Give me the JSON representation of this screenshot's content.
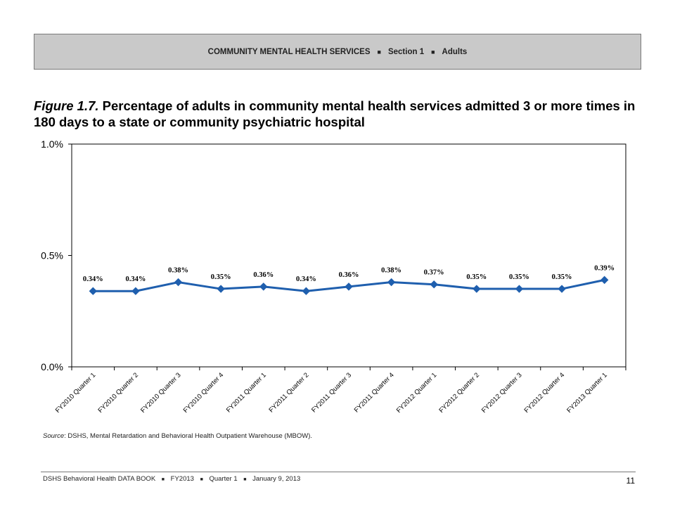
{
  "header": {
    "part1": "COMMUNITY MENTAL HEALTH SERVICES",
    "sep": "■",
    "part2": "Section 1",
    "part3": "Adults"
  },
  "title": {
    "figure": "Figure 1.7.",
    "text": "Percentage of adults in community mental health services admitted 3 or more times in 180 days to a state or community psychiatric hospital"
  },
  "chart_data": {
    "type": "line",
    "categories": [
      "FY2010 Quarter 1",
      "FY2010 Quarter 2",
      "FY2010 Quarter 3",
      "FY2010 Quarter 4",
      "FY2011 Quarter 1",
      "FY2011 Quarter 2",
      "FY2011 Quarter 3",
      "FY2011 Quarter 4",
      "FY2012 Quarter 1",
      "FY2012 Quarter 2",
      "FY2012 Quarter 3",
      "FY2012 Quarter 4",
      "FY2013 Quarter 1"
    ],
    "series": [
      {
        "values": [
          0.34,
          0.34,
          0.38,
          0.35,
          0.36,
          0.34,
          0.36,
          0.38,
          0.37,
          0.35,
          0.35,
          0.35,
          0.39
        ],
        "data_labels": [
          "0.34%",
          "0.34%",
          "0.38%",
          "0.35%",
          "0.36%",
          "0.34%",
          "0.36%",
          "0.38%",
          "0.37%",
          "0.35%",
          "0.35%",
          "0.35%",
          "0.39%"
        ],
        "color": "#1f5fae"
      }
    ],
    "ylim": [
      0,
      1.0
    ],
    "yticks": [
      0,
      0.5,
      1.0
    ],
    "ytick_labels": [
      "0.0%",
      "0.5%",
      "1.0%"
    ],
    "grid": false,
    "legend": "none",
    "marker": "diamond"
  },
  "source": {
    "label": "Source",
    "text": ": DSHS, Mental Retardation and Behavioral Health Outpatient Warehouse (MBOW)."
  },
  "footer": {
    "book": "DSHS Behavioral Health DATA BOOK",
    "sep": "■",
    "fy": "FY2013",
    "quarter": "Quarter 1",
    "date": "January  9, 2013",
    "page": "11"
  }
}
